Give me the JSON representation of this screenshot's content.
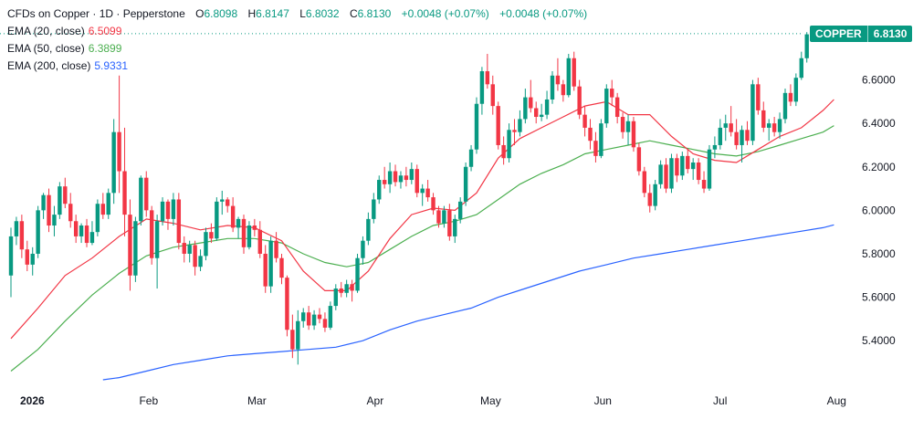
{
  "legend": {
    "title": "CFDs on Copper · 1D · Pepperstone",
    "o_label": "O",
    "o_value": "6.8098",
    "h_label": "H",
    "h_value": "6.8147",
    "l_label": "L",
    "l_value": "6.8032",
    "c_label": "C",
    "c_value": "6.8130",
    "change": "+0.0048 (+0.07%)",
    "change2": "+0.0048 (+0.07%)",
    "ema20_label": "EMA (20, close)",
    "ema20_value": "6.5099",
    "ema50_label": "EMA (50, close)",
    "ema50_value": "6.3899",
    "ema200_label": "EMA (200, close)",
    "ema200_value": "5.9331"
  },
  "price_tag": {
    "symbol": "COPPER",
    "value": "6.8130"
  },
  "colors": {
    "up": "#089981",
    "down": "#f23645",
    "ema20": "#f23645",
    "ema50": "#4caf50",
    "ema200": "#2962ff",
    "axis_text": "#131722",
    "price_line": "#089981"
  },
  "chart_data": {
    "type": "candlestick",
    "title": "CFDs on Copper · 1D · Pepperstone",
    "ylim": [
      5.22,
      6.98
    ],
    "y_ticks": [
      "6.6000",
      "6.4000",
      "6.2000",
      "6.0000",
      "5.8000",
      "5.6000",
      "5.4000"
    ],
    "x_ticks": [
      {
        "label": "2026",
        "index": 0
      },
      {
        "label": "Feb",
        "index": 22
      },
      {
        "label": "Mar",
        "index": 42
      },
      {
        "label": "Apr",
        "index": 64
      },
      {
        "label": "May",
        "index": 85
      },
      {
        "label": "Jun",
        "index": 106
      },
      {
        "label": "Jul",
        "index": 128
      },
      {
        "label": "Aug",
        "index": 149
      }
    ],
    "ohlc": [
      [
        5.7,
        5.92,
        5.6,
        5.88
      ],
      [
        5.88,
        5.97,
        5.84,
        5.95
      ],
      [
        5.95,
        5.98,
        5.78,
        5.82
      ],
      [
        5.82,
        5.86,
        5.72,
        5.75
      ],
      [
        5.75,
        5.83,
        5.7,
        5.8
      ],
      [
        5.8,
        6.02,
        5.78,
        6.0
      ],
      [
        6.0,
        6.08,
        5.96,
        6.07
      ],
      [
        6.07,
        6.1,
        5.9,
        5.93
      ],
      [
        5.93,
        6.02,
        5.88,
        5.98
      ],
      [
        5.98,
        6.13,
        5.96,
        6.11
      ],
      [
        6.11,
        6.15,
        6.01,
        6.03
      ],
      [
        6.03,
        6.08,
        5.92,
        5.95
      ],
      [
        5.95,
        5.98,
        5.85,
        5.88
      ],
      [
        5.88,
        5.94,
        5.85,
        5.93
      ],
      [
        5.93,
        5.96,
        5.83,
        5.85
      ],
      [
        5.85,
        5.95,
        5.84,
        5.9
      ],
      [
        5.9,
        6.05,
        5.88,
        6.03
      ],
      [
        6.03,
        6.08,
        5.96,
        5.98
      ],
      [
        5.98,
        6.1,
        5.96,
        6.08
      ],
      [
        6.08,
        6.42,
        6.03,
        6.36
      ],
      [
        6.36,
        6.62,
        6.08,
        6.18
      ],
      [
        6.18,
        6.38,
        5.88,
        5.98
      ],
      [
        5.98,
        6.05,
        5.63,
        5.7
      ],
      [
        5.7,
        5.97,
        5.67,
        5.95
      ],
      [
        5.95,
        6.16,
        5.93,
        6.15
      ],
      [
        6.15,
        6.18,
        5.97,
        6.0
      ],
      [
        6.0,
        6.02,
        5.75,
        5.78
      ],
      [
        5.78,
        5.98,
        5.64,
        5.95
      ],
      [
        5.95,
        6.06,
        5.93,
        6.04
      ],
      [
        6.04,
        6.05,
        5.91,
        5.96
      ],
      [
        5.96,
        6.08,
        5.93,
        6.05
      ],
      [
        6.05,
        6.08,
        5.82,
        5.85
      ],
      [
        5.85,
        5.88,
        5.76,
        5.8
      ],
      [
        5.8,
        5.86,
        5.76,
        5.84
      ],
      [
        5.84,
        5.86,
        5.7,
        5.74
      ],
      [
        5.74,
        5.82,
        5.72,
        5.79
      ],
      [
        5.79,
        5.92,
        5.77,
        5.9
      ],
      [
        5.9,
        5.94,
        5.85,
        5.87
      ],
      [
        5.87,
        6.06,
        5.86,
        6.04
      ],
      [
        6.04,
        6.09,
        5.98,
        6.05
      ],
      [
        6.05,
        6.06,
        5.99,
        6.02
      ],
      [
        6.02,
        6.06,
        5.9,
        5.92
      ],
      [
        5.92,
        5.97,
        5.87,
        5.96
      ],
      [
        5.96,
        5.98,
        5.8,
        5.83
      ],
      [
        5.83,
        5.95,
        5.82,
        5.93
      ],
      [
        5.93,
        5.96,
        5.88,
        5.91
      ],
      [
        5.91,
        5.95,
        5.78,
        5.8
      ],
      [
        5.8,
        5.84,
        5.62,
        5.65
      ],
      [
        5.65,
        5.88,
        5.62,
        5.86
      ],
      [
        5.86,
        5.9,
        5.76,
        5.78
      ],
      [
        5.78,
        5.8,
        5.66,
        5.69
      ],
      [
        5.69,
        5.7,
        5.42,
        5.45
      ],
      [
        5.45,
        5.52,
        5.32,
        5.36
      ],
      [
        5.36,
        5.54,
        5.29,
        5.49
      ],
      [
        5.49,
        5.55,
        5.46,
        5.53
      ],
      [
        5.53,
        5.56,
        5.45,
        5.47
      ],
      [
        5.47,
        5.54,
        5.45,
        5.52
      ],
      [
        5.52,
        5.55,
        5.48,
        5.5
      ],
      [
        5.5,
        5.53,
        5.44,
        5.46
      ],
      [
        5.46,
        5.58,
        5.45,
        5.56
      ],
      [
        5.56,
        5.66,
        5.54,
        5.64
      ],
      [
        5.64,
        5.67,
        5.6,
        5.62
      ],
      [
        5.62,
        5.68,
        5.6,
        5.66
      ],
      [
        5.66,
        5.68,
        5.58,
        5.63
      ],
      [
        5.63,
        5.8,
        5.62,
        5.78
      ],
      [
        5.78,
        5.88,
        5.75,
        5.86
      ],
      [
        5.86,
        5.99,
        5.84,
        5.96
      ],
      [
        5.96,
        6.08,
        5.94,
        6.05
      ],
      [
        6.05,
        6.16,
        6.03,
        6.14
      ],
      [
        6.14,
        6.2,
        6.1,
        6.12
      ],
      [
        6.12,
        6.22,
        6.08,
        6.18
      ],
      [
        6.18,
        6.21,
        6.11,
        6.13
      ],
      [
        6.13,
        6.18,
        6.1,
        6.16
      ],
      [
        6.16,
        6.2,
        6.11,
        6.14
      ],
      [
        6.14,
        6.22,
        6.12,
        6.19
      ],
      [
        6.19,
        6.21,
        6.06,
        6.08
      ],
      [
        6.08,
        6.12,
        6.02,
        6.1
      ],
      [
        6.1,
        6.14,
        6.04,
        6.06
      ],
      [
        6.06,
        6.08,
        5.98,
        6.0
      ],
      [
        6.0,
        6.02,
        5.92,
        5.94
      ],
      [
        5.94,
        6.02,
        5.92,
        6.0
      ],
      [
        6.0,
        6.03,
        5.86,
        5.88
      ],
      [
        5.88,
        5.98,
        5.85,
        5.96
      ],
      [
        5.96,
        6.06,
        5.94,
        6.04
      ],
      [
        6.04,
        6.22,
        6.02,
        6.2
      ],
      [
        6.2,
        6.3,
        6.18,
        6.28
      ],
      [
        6.28,
        6.52,
        6.26,
        6.49
      ],
      [
        6.49,
        6.66,
        6.44,
        6.64
      ],
      [
        6.64,
        6.72,
        6.56,
        6.58
      ],
      [
        6.58,
        6.62,
        6.44,
        6.48
      ],
      [
        6.48,
        6.5,
        6.28,
        6.3
      ],
      [
        6.3,
        6.34,
        6.21,
        6.24
      ],
      [
        6.24,
        6.4,
        6.22,
        6.37
      ],
      [
        6.37,
        6.42,
        6.3,
        6.36
      ],
      [
        6.36,
        6.46,
        6.34,
        6.42
      ],
      [
        6.42,
        6.56,
        6.4,
        6.52
      ],
      [
        6.52,
        6.6,
        6.45,
        6.47
      ],
      [
        6.47,
        6.5,
        6.4,
        6.43
      ],
      [
        6.43,
        6.49,
        6.41,
        6.44
      ],
      [
        6.44,
        6.55,
        6.42,
        6.51
      ],
      [
        6.51,
        6.64,
        6.49,
        6.62
      ],
      [
        6.62,
        6.7,
        6.55,
        6.58
      ],
      [
        6.58,
        6.6,
        6.5,
        6.53
      ],
      [
        6.53,
        6.72,
        6.52,
        6.7
      ],
      [
        6.7,
        6.73,
        6.55,
        6.57
      ],
      [
        6.57,
        6.6,
        6.42,
        6.44
      ],
      [
        6.44,
        6.48,
        6.34,
        6.38
      ],
      [
        6.38,
        6.42,
        6.28,
        6.32
      ],
      [
        6.32,
        6.36,
        6.22,
        6.25
      ],
      [
        6.25,
        6.42,
        6.24,
        6.4
      ],
      [
        6.4,
        6.58,
        6.38,
        6.56
      ],
      [
        6.56,
        6.6,
        6.48,
        6.52
      ],
      [
        6.52,
        6.54,
        6.4,
        6.43
      ],
      [
        6.43,
        6.45,
        6.33,
        6.36
      ],
      [
        6.36,
        6.44,
        6.3,
        6.41
      ],
      [
        6.41,
        6.43,
        6.27,
        6.29
      ],
      [
        6.29,
        6.31,
        6.16,
        6.18
      ],
      [
        6.18,
        6.2,
        6.06,
        6.08
      ],
      [
        6.08,
        6.12,
        5.99,
        6.02
      ],
      [
        6.02,
        6.14,
        6.0,
        6.12
      ],
      [
        6.12,
        6.23,
        6.1,
        6.21
      ],
      [
        6.21,
        6.24,
        6.08,
        6.1
      ],
      [
        6.1,
        6.26,
        6.08,
        6.24
      ],
      [
        6.24,
        6.26,
        6.13,
        6.16
      ],
      [
        6.16,
        6.27,
        6.14,
        6.25
      ],
      [
        6.25,
        6.28,
        6.17,
        6.19
      ],
      [
        6.19,
        6.24,
        6.14,
        6.22
      ],
      [
        6.22,
        6.24,
        6.12,
        6.14
      ],
      [
        6.14,
        6.18,
        6.08,
        6.1
      ],
      [
        6.1,
        6.3,
        6.09,
        6.28
      ],
      [
        6.28,
        6.34,
        6.24,
        6.3
      ],
      [
        6.3,
        6.42,
        6.28,
        6.38
      ],
      [
        6.38,
        6.44,
        6.32,
        6.4
      ],
      [
        6.4,
        6.48,
        6.34,
        6.36
      ],
      [
        6.36,
        6.42,
        6.28,
        6.3
      ],
      [
        6.3,
        6.39,
        6.22,
        6.37
      ],
      [
        6.37,
        6.41,
        6.3,
        6.32
      ],
      [
        6.32,
        6.6,
        6.3,
        6.58
      ],
      [
        6.58,
        6.61,
        6.44,
        6.46
      ],
      [
        6.46,
        6.5,
        6.36,
        6.38
      ],
      [
        6.38,
        6.42,
        6.32,
        6.4
      ],
      [
        6.4,
        6.43,
        6.34,
        6.36
      ],
      [
        6.36,
        6.45,
        6.33,
        6.42
      ],
      [
        6.42,
        6.56,
        6.4,
        6.54
      ],
      [
        6.54,
        6.58,
        6.48,
        6.5
      ],
      [
        6.5,
        6.63,
        6.48,
        6.61
      ],
      [
        6.61,
        6.73,
        6.6,
        6.7
      ],
      [
        6.7,
        6.82,
        6.68,
        6.81
      ],
      [
        6.8098,
        6.8147,
        6.8032,
        6.813
      ]
    ],
    "ema20": [
      [
        0,
        5.41
      ],
      [
        5,
        5.55
      ],
      [
        10,
        5.7
      ],
      [
        15,
        5.78
      ],
      [
        20,
        5.88
      ],
      [
        25,
        5.96
      ],
      [
        30,
        5.94
      ],
      [
        35,
        5.91
      ],
      [
        40,
        5.93
      ],
      [
        45,
        5.92
      ],
      [
        50,
        5.86
      ],
      [
        54,
        5.72
      ],
      [
        58,
        5.63
      ],
      [
        62,
        5.63
      ],
      [
        66,
        5.72
      ],
      [
        70,
        5.87
      ],
      [
        74,
        5.98
      ],
      [
        78,
        6.01
      ],
      [
        82,
        6.0
      ],
      [
        86,
        6.08
      ],
      [
        90,
        6.24
      ],
      [
        94,
        6.33
      ],
      [
        98,
        6.38
      ],
      [
        102,
        6.43
      ],
      [
        106,
        6.48
      ],
      [
        110,
        6.5
      ],
      [
        114,
        6.44
      ],
      [
        118,
        6.44
      ],
      [
        122,
        6.34
      ],
      [
        126,
        6.26
      ],
      [
        130,
        6.23
      ],
      [
        134,
        6.22
      ],
      [
        138,
        6.28
      ],
      [
        142,
        6.34
      ],
      [
        146,
        6.38
      ],
      [
        150,
        6.46
      ],
      [
        152,
        6.5099
      ]
    ],
    "ema50": [
      [
        0,
        5.26
      ],
      [
        5,
        5.36
      ],
      [
        10,
        5.49
      ],
      [
        15,
        5.61
      ],
      [
        20,
        5.71
      ],
      [
        25,
        5.79
      ],
      [
        30,
        5.83
      ],
      [
        35,
        5.85
      ],
      [
        40,
        5.87
      ],
      [
        45,
        5.87
      ],
      [
        50,
        5.85
      ],
      [
        54,
        5.8
      ],
      [
        58,
        5.76
      ],
      [
        62,
        5.74
      ],
      [
        66,
        5.76
      ],
      [
        70,
        5.82
      ],
      [
        74,
        5.88
      ],
      [
        78,
        5.93
      ],
      [
        82,
        5.95
      ],
      [
        86,
        5.98
      ],
      [
        90,
        6.05
      ],
      [
        94,
        6.12
      ],
      [
        98,
        6.17
      ],
      [
        102,
        6.21
      ],
      [
        106,
        6.26
      ],
      [
        110,
        6.28
      ],
      [
        114,
        6.3
      ],
      [
        118,
        6.32
      ],
      [
        122,
        6.3
      ],
      [
        126,
        6.28
      ],
      [
        130,
        6.26
      ],
      [
        134,
        6.25
      ],
      [
        138,
        6.27
      ],
      [
        142,
        6.3
      ],
      [
        146,
        6.33
      ],
      [
        150,
        6.36
      ],
      [
        152,
        6.3899
      ]
    ],
    "ema200": [
      [
        17,
        5.22
      ],
      [
        20,
        5.23
      ],
      [
        25,
        5.26
      ],
      [
        30,
        5.29
      ],
      [
        35,
        5.31
      ],
      [
        40,
        5.33
      ],
      [
        45,
        5.34
      ],
      [
        50,
        5.35
      ],
      [
        55,
        5.36
      ],
      [
        60,
        5.37
      ],
      [
        65,
        5.4
      ],
      [
        70,
        5.45
      ],
      [
        75,
        5.49
      ],
      [
        80,
        5.52
      ],
      [
        85,
        5.55
      ],
      [
        90,
        5.6
      ],
      [
        95,
        5.64
      ],
      [
        100,
        5.68
      ],
      [
        105,
        5.72
      ],
      [
        110,
        5.75
      ],
      [
        115,
        5.78
      ],
      [
        120,
        5.8
      ],
      [
        125,
        5.82
      ],
      [
        130,
        5.84
      ],
      [
        135,
        5.86
      ],
      [
        140,
        5.88
      ],
      [
        145,
        5.9
      ],
      [
        150,
        5.92
      ],
      [
        152,
        5.9331
      ]
    ],
    "last_price": 6.813
  }
}
